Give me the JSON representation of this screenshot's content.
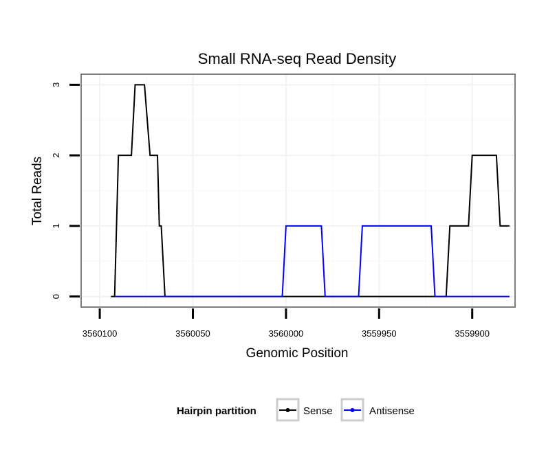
{
  "chart_data": {
    "type": "line",
    "title": "Small RNA-seq Read Density",
    "xlabel": "Genomic Position",
    "ylabel": "Total Reads",
    "xlim": [
      3560110,
      3559877
    ],
    "ylim": [
      -0.15,
      3.15
    ],
    "x_reversed": true,
    "xticks": [
      3560100,
      3560050,
      3560000,
      3559950,
      3559900
    ],
    "xtick_labels": [
      "3560100",
      "3560050",
      "3560000",
      "3559950",
      "3559900"
    ],
    "yticks": [
      0,
      1,
      2,
      3
    ],
    "ytick_labels": [
      "0",
      "1",
      "2",
      "3"
    ],
    "grid": true,
    "legend": {
      "title": "Hairpin partition",
      "position": "bottom"
    },
    "series": [
      {
        "name": "Sense",
        "color": "#000000",
        "x": [
          3560094,
          3560092,
          3560090,
          3560083,
          3560081,
          3560076,
          3560073,
          3560069,
          3560068,
          3560067,
          3560065,
          3560063,
          3559999,
          3559980,
          3559960,
          3559930,
          3559914,
          3559912,
          3559902,
          3559900,
          3559887,
          3559885,
          3559880
        ],
        "y": [
          0,
          0,
          2,
          2,
          3,
          3,
          2,
          2,
          1,
          1,
          0,
          0,
          0,
          0,
          0,
          0,
          0,
          1,
          1,
          2,
          2,
          1,
          1
        ]
      },
      {
        "name": "Antisense",
        "color": "#0000ff",
        "x": [
          3560092,
          3560002,
          3560000,
          3559981,
          3559979,
          3559961,
          3559959,
          3559922,
          3559920,
          3559880
        ],
        "y": [
          0,
          0,
          1,
          1,
          0,
          0,
          1,
          1,
          0,
          0
        ]
      }
    ]
  }
}
